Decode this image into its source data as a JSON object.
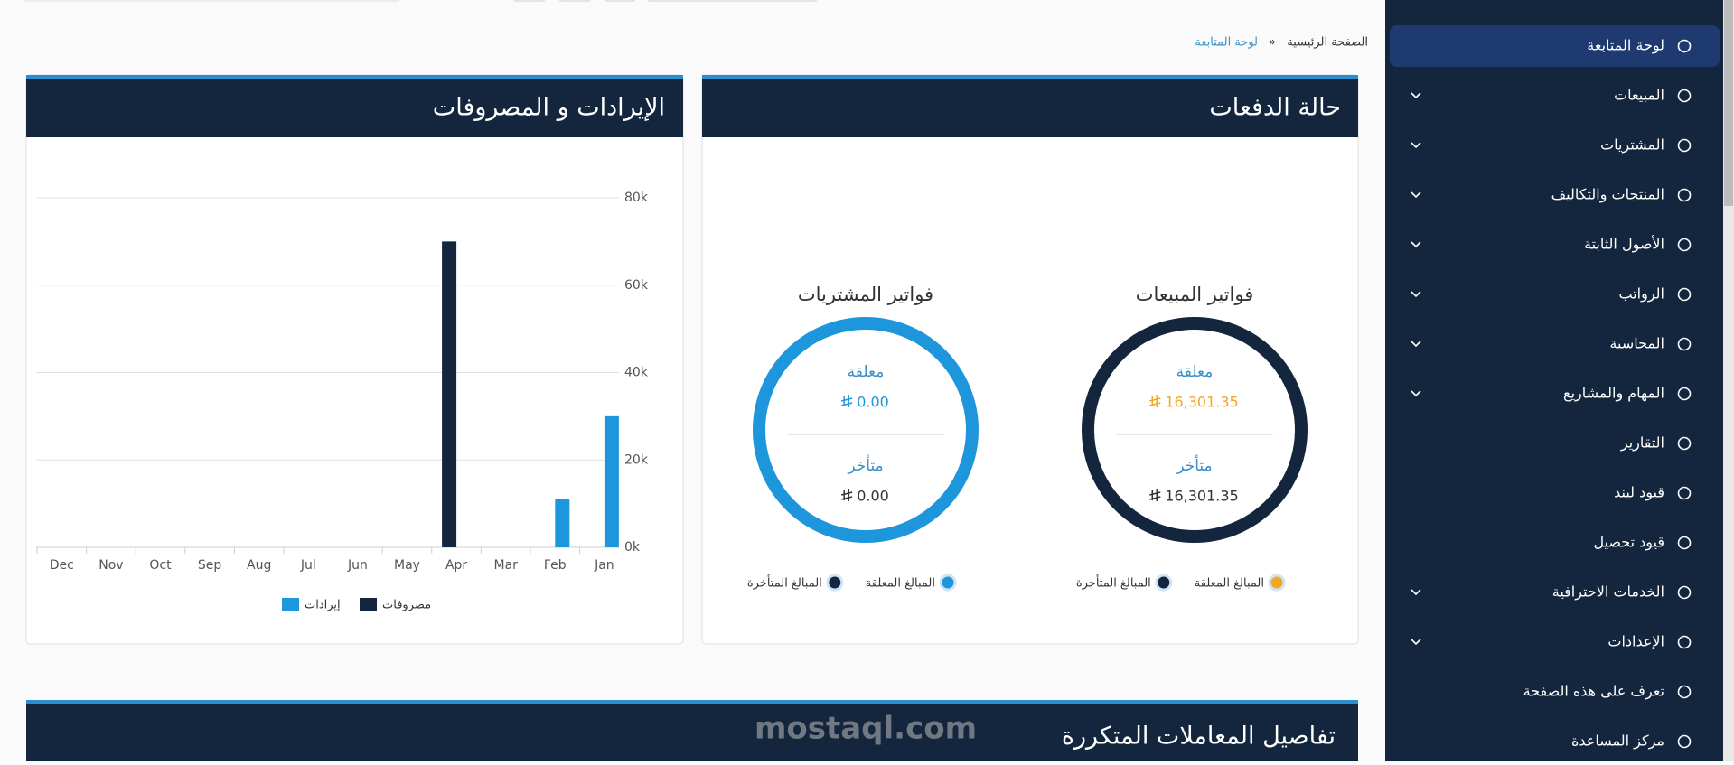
{
  "breadcrumb": {
    "home": "الصفحة الرئيسية",
    "current": "لوحة المتابعة"
  },
  "sidebar": {
    "items": [
      {
        "label": "لوحة المتابعة",
        "active": true,
        "expandable": false
      },
      {
        "label": "المبيعات",
        "active": false,
        "expandable": true
      },
      {
        "label": "المشتريات",
        "active": false,
        "expandable": true
      },
      {
        "label": "المنتجات والتكاليف",
        "active": false,
        "expandable": true
      },
      {
        "label": "الأصول الثابتة",
        "active": false,
        "expandable": true
      },
      {
        "label": "الرواتب",
        "active": false,
        "expandable": true
      },
      {
        "label": "المحاسبة",
        "active": false,
        "expandable": true
      },
      {
        "label": "المهام والمشاريع",
        "active": false,
        "expandable": true
      },
      {
        "label": "التقارير",
        "active": false,
        "expandable": false
      },
      {
        "label": "قيود ليند",
        "active": false,
        "expandable": false
      },
      {
        "label": "قيود تحصيل",
        "active": false,
        "expandable": false
      },
      {
        "label": "الخدمات الاحترافية",
        "active": false,
        "expandable": true
      },
      {
        "label": "الإعدادات",
        "active": false,
        "expandable": true
      },
      {
        "label": "تعرف على هذه الصفحة",
        "active": false,
        "expandable": false
      },
      {
        "label": "مركز المساعدة",
        "active": false,
        "expandable": false
      }
    ]
  },
  "payments_panel": {
    "title": "حالة الدفعات",
    "cards": [
      {
        "title": "فواتير المبيعات",
        "ring_color": "#14263d",
        "pending_color": "#f5a623",
        "pending_label": "معلقة",
        "pending_amount": "16,301.35",
        "overdue_label": "متأخر",
        "overdue_amount": "16,301.35",
        "legend": [
          {
            "label": "المبالغ المعلقة",
            "color": "#f5a623"
          },
          {
            "label": "المبالغ المتأخرة",
            "color": "#14263d"
          }
        ]
      },
      {
        "title": "فواتير المشتريات",
        "ring_color": "#1e96dc",
        "pending_color": "#1e96dc",
        "pending_label": "معلقة",
        "pending_amount": "0.00",
        "overdue_label": "متأخر",
        "overdue_amount": "0.00",
        "legend": [
          {
            "label": "المبالغ المعلقة",
            "color": "#1e96dc"
          },
          {
            "label": "المبالغ المتأخرة",
            "color": "#14263d"
          }
        ]
      }
    ]
  },
  "revenue_panel": {
    "title": "الإيرادات و المصروفات"
  },
  "chart_data": {
    "type": "bar",
    "categories": [
      "Dec",
      "Nov",
      "Oct",
      "Sep",
      "Aug",
      "Jul",
      "Jun",
      "May",
      "Apr",
      "Mar",
      "Feb",
      "Jan"
    ],
    "series": [
      {
        "name": "إيرادات",
        "color": "#1e96dc",
        "values": [
          0,
          0,
          0,
          0,
          0,
          0,
          0,
          0,
          0,
          0,
          11000,
          30000
        ]
      },
      {
        "name": "مصروفات",
        "color": "#14263d",
        "values": [
          0,
          0,
          0,
          0,
          0,
          0,
          0,
          0,
          70000,
          0,
          0,
          0
        ]
      }
    ],
    "ylim": [
      0,
      80000
    ],
    "yticks": [
      {
        "value": 0,
        "label": "0k"
      },
      {
        "value": 20000,
        "label": "20k"
      },
      {
        "value": 40000,
        "label": "40k"
      },
      {
        "value": 60000,
        "label": "60k"
      },
      {
        "value": 80000,
        "label": "80k"
      }
    ],
    "grid": true
  },
  "recurring_panel": {
    "title": "تفاصيل المعاملات المتكررة"
  },
  "watermark": "mostaql.com"
}
